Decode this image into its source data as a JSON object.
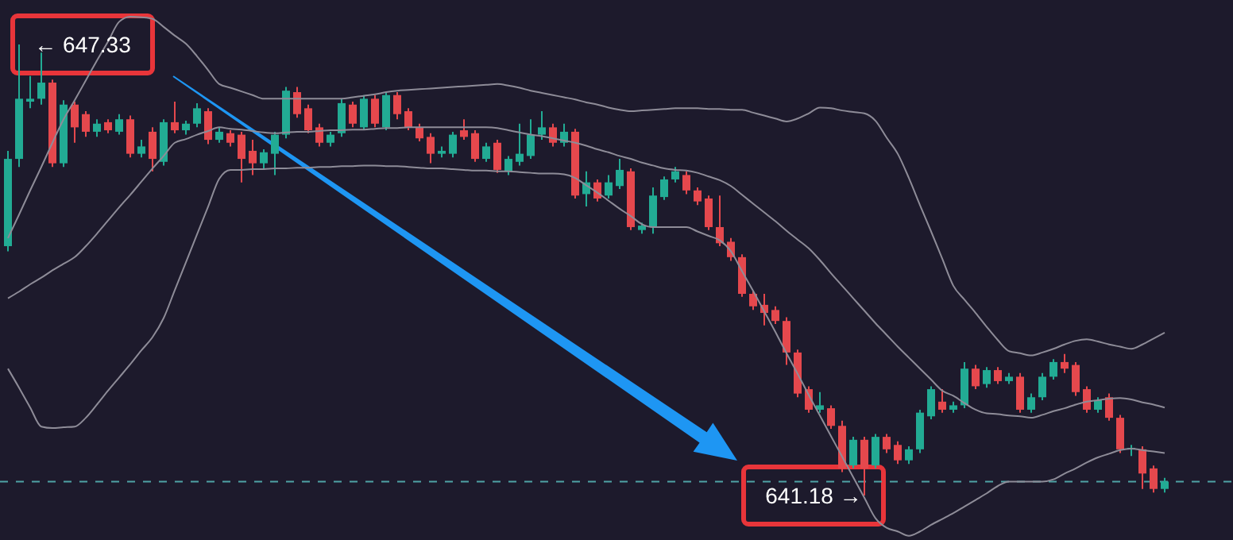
{
  "chart_data": {
    "type": "candlestick",
    "categories": [
      null,
      null,
      null,
      null,
      null,
      null,
      null,
      null,
      null,
      null,
      null,
      null,
      null,
      null,
      null,
      null,
      null,
      null,
      null,
      null,
      null,
      null,
      null,
      null,
      null,
      null,
      null,
      null,
      null,
      null,
      null,
      null,
      null,
      null,
      null,
      null,
      null,
      null,
      null,
      null,
      null,
      null,
      null,
      null,
      null,
      null,
      null,
      null,
      null,
      null,
      null,
      null,
      null,
      null,
      null,
      null,
      null,
      null,
      null,
      null,
      null,
      null,
      null,
      null,
      null,
      null,
      null,
      null,
      null,
      null,
      null,
      null,
      null,
      null,
      null,
      null,
      null,
      null,
      null,
      null,
      null,
      null,
      null,
      null,
      null,
      null,
      null,
      null,
      null,
      null,
      null,
      null,
      null,
      null,
      null,
      null,
      null,
      null,
      null,
      null,
      null,
      null,
      null,
      null,
      null
    ],
    "colors": [
      "#22ab94",
      "#22ab94",
      "#22ab94",
      "#22ab94",
      "#e5484d",
      "#22ab94",
      "#e5484d",
      "#e5484d",
      "#22ab94",
      "#e5484d",
      "#22ab94",
      "#e5484d",
      "#22ab94",
      "#e5484d",
      "#22ab94",
      "#e5484d",
      "#22ab94",
      "#22ab94",
      "#e5484d",
      "#22ab94",
      "#e5484d",
      "#e5484d",
      "#e5484d",
      "#22ab94",
      "#22ab94",
      "#22ab94",
      "#e5484d",
      "#e5484d",
      "#e5484d",
      "#22ab94",
      "#22ab94",
      "#e5484d",
      "#22ab94",
      "#e5484d",
      "#22ab94",
      "#e5484d",
      "#e5484d",
      "#e5484d",
      "#e5484d",
      "#22ab94",
      "#22ab94",
      "#e5484d",
      "#e5484d",
      "#22ab94",
      "#e5484d",
      "#22ab94",
      "#22ab94",
      "#22ab94",
      "#22ab94",
      "#e5484d",
      "#22ab94",
      "#e5484d",
      "#22ab94",
      "#e5484d",
      "#22ab94",
      "#22ab94",
      "#e5484d",
      "#22ab94",
      "#22ab94",
      "#22ab94",
      "#22ab94",
      "#e5484d",
      "#e5484d",
      "#e5484d",
      "#e5484d",
      "#e5484d",
      "#e5484d",
      "#e5484d",
      "#e5484d",
      "#e5484d",
      "#e5484d",
      "#e5484d",
      "#e5484d",
      "#22ab94",
      "#e5484d",
      "#e5484d",
      "#22ab94",
      "#e5484d",
      "#22ab94",
      "#e5484d",
      "#e5484d",
      "#22ab94",
      "#22ab94",
      "#22ab94",
      "#e5484d",
      "#22ab94",
      "#22ab94",
      "#e5484d",
      "#22ab94",
      "#e5484d",
      "#22ab94",
      "#e5484d",
      "#22ab94",
      "#22ab94",
      "#22ab94",
      "#e5484d",
      "#e5484d",
      "#e5484d",
      "#22ab94",
      "#e5484d",
      "#e5484d",
      "#22ab94",
      "#e5484d",
      "#e5484d",
      "#22ab94"
    ],
    "ohlc": [
      [
        644.58,
        645.88,
        644.51,
        645.77
      ],
      [
        645.77,
        647.33,
        645.66,
        646.59
      ],
      [
        646.55,
        646.9,
        646.46,
        646.59
      ],
      [
        646.59,
        647.22,
        646.51,
        646.81
      ],
      [
        646.81,
        646.85,
        645.66,
        645.71
      ],
      [
        645.71,
        646.57,
        645.66,
        646.51
      ],
      [
        646.51,
        646.55,
        645.99,
        646.2
      ],
      [
        646.38,
        646.42,
        646.07,
        646.14
      ],
      [
        646.14,
        646.31,
        646.07,
        646.25
      ],
      [
        646.27,
        646.31,
        646.12,
        646.16
      ],
      [
        646.14,
        646.38,
        646.1,
        646.31
      ],
      [
        646.31,
        646.36,
        645.79,
        645.84
      ],
      [
        645.84,
        646.03,
        645.79,
        645.94
      ],
      [
        646.14,
        646.2,
        645.6,
        645.77
      ],
      [
        645.73,
        646.31,
        645.68,
        646.27
      ],
      [
        646.27,
        646.55,
        646.12,
        646.16
      ],
      [
        646.16,
        646.29,
        646.1,
        646.25
      ],
      [
        646.25,
        646.53,
        646.2,
        646.46
      ],
      [
        646.42,
        646.46,
        645.97,
        646.03
      ],
      [
        646.03,
        646.2,
        645.99,
        646.14
      ],
      [
        646.12,
        646.16,
        645.94,
        645.99
      ],
      [
        646.1,
        646.14,
        645.45,
        645.77
      ],
      [
        645.88,
        646.03,
        645.55,
        645.71
      ],
      [
        645.71,
        645.9,
        645.64,
        645.86
      ],
      [
        645.84,
        646.14,
        645.55,
        646.1
      ],
      [
        646.1,
        646.75,
        646.05,
        646.7
      ],
      [
        646.68,
        646.75,
        646.33,
        646.38
      ],
      [
        646.46,
        646.51,
        646.12,
        646.16
      ],
      [
        646.2,
        646.25,
        645.94,
        645.99
      ],
      [
        645.99,
        646.14,
        645.94,
        646.1
      ],
      [
        646.12,
        646.59,
        646.07,
        646.53
      ],
      [
        646.51,
        646.55,
        646.2,
        646.25
      ],
      [
        646.2,
        646.64,
        646.16,
        646.59
      ],
      [
        646.59,
        646.64,
        646.2,
        646.25
      ],
      [
        646.2,
        646.68,
        646.16,
        646.64
      ],
      [
        646.64,
        646.68,
        646.31,
        646.38
      ],
      [
        646.42,
        646.46,
        646.16,
        646.2
      ],
      [
        646.2,
        646.25,
        646.01,
        646.05
      ],
      [
        646.07,
        646.12,
        645.71,
        645.84
      ],
      [
        645.84,
        645.94,
        645.79,
        645.88
      ],
      [
        645.84,
        646.14,
        645.79,
        646.1
      ],
      [
        646.16,
        646.31,
        646.03,
        646.07
      ],
      [
        646.12,
        646.16,
        645.73,
        645.77
      ],
      [
        645.77,
        645.99,
        645.73,
        645.94
      ],
      [
        645.99,
        646.03,
        645.58,
        645.62
      ],
      [
        645.6,
        645.81,
        645.55,
        645.77
      ],
      [
        645.73,
        646.25,
        645.68,
        645.84
      ],
      [
        645.81,
        646.31,
        645.77,
        646.1
      ],
      [
        646.1,
        646.42,
        646.03,
        646.2
      ],
      [
        646.2,
        646.25,
        645.94,
        645.99
      ],
      [
        645.99,
        646.25,
        645.94,
        646.14
      ],
      [
        646.14,
        646.18,
        645.23,
        645.27
      ],
      [
        645.29,
        645.6,
        645.12,
        645.45
      ],
      [
        645.45,
        645.49,
        645.19,
        645.23
      ],
      [
        645.27,
        645.55,
        645.23,
        645.45
      ],
      [
        645.4,
        645.77,
        645.36,
        645.62
      ],
      [
        645.6,
        645.64,
        644.8,
        644.84
      ],
      [
        644.8,
        644.9,
        644.75,
        644.86
      ],
      [
        644.84,
        645.38,
        644.75,
        645.27
      ],
      [
        645.25,
        645.53,
        645.21,
        645.49
      ],
      [
        645.49,
        645.66,
        645.45,
        645.6
      ],
      [
        645.55,
        645.6,
        645.29,
        645.34
      ],
      [
        645.34,
        645.38,
        645.14,
        645.19
      ],
      [
        645.23,
        645.27,
        644.8,
        644.84
      ],
      [
        644.84,
        645.27,
        644.58,
        644.62
      ],
      [
        644.64,
        644.69,
        644.38,
        644.43
      ],
      [
        644.43,
        644.47,
        643.89,
        643.93
      ],
      [
        643.93,
        643.97,
        643.71,
        643.76
      ],
      [
        643.78,
        643.93,
        643.5,
        643.67
      ],
      [
        643.71,
        643.76,
        643.52,
        643.56
      ],
      [
        643.56,
        643.61,
        642.96,
        643.13
      ],
      [
        643.13,
        643.17,
        642.52,
        642.57
      ],
      [
        642.63,
        642.67,
        642.31,
        642.35
      ],
      [
        642.35,
        642.59,
        642.31,
        642.41
      ],
      [
        642.37,
        642.41,
        642.09,
        642.13
      ],
      [
        642.13,
        642.2,
        641.5,
        641.55
      ],
      [
        641.59,
        641.98,
        641.55,
        641.94
      ],
      [
        641.94,
        641.98,
        641.18,
        641.55
      ],
      [
        641.59,
        642.02,
        641.55,
        641.98
      ],
      [
        641.98,
        642.02,
        641.76,
        641.81
      ],
      [
        641.87,
        641.92,
        641.61,
        641.66
      ],
      [
        641.66,
        641.85,
        641.61,
        641.81
      ],
      [
        641.81,
        642.35,
        641.76,
        642.31
      ],
      [
        642.26,
        642.67,
        642.22,
        642.63
      ],
      [
        642.46,
        642.63,
        642.31,
        642.35
      ],
      [
        642.35,
        642.46,
        642.31,
        642.41
      ],
      [
        642.41,
        643.0,
        642.37,
        642.91
      ],
      [
        642.91,
        642.96,
        642.63,
        642.67
      ],
      [
        642.7,
        642.93,
        642.65,
        642.89
      ],
      [
        642.89,
        642.93,
        642.7,
        642.74
      ],
      [
        642.74,
        642.85,
        642.7,
        642.8
      ],
      [
        642.8,
        642.85,
        642.31,
        642.35
      ],
      [
        642.35,
        642.57,
        642.31,
        642.52
      ],
      [
        642.52,
        642.85,
        642.48,
        642.8
      ],
      [
        642.8,
        643.04,
        642.76,
        643.0
      ],
      [
        643.0,
        643.11,
        642.85,
        642.91
      ],
      [
        642.96,
        643.0,
        642.54,
        642.59
      ],
      [
        642.63,
        642.67,
        642.31,
        642.35
      ],
      [
        642.35,
        642.52,
        642.31,
        642.48
      ],
      [
        642.52,
        642.57,
        642.2,
        642.24
      ],
      [
        642.24,
        642.28,
        641.76,
        641.81
      ],
      [
        641.81,
        641.87,
        641.72,
        641.83
      ],
      [
        641.81,
        641.85,
        641.27,
        641.48
      ],
      [
        641.55,
        641.59,
        641.22,
        641.27
      ],
      [
        641.27,
        641.42,
        641.22,
        641.37
      ]
    ],
    "series": [
      {
        "type": "line",
        "color": "#8e8c98",
        "values": [
          644.69,
          645.01,
          645.34,
          645.66,
          645.99,
          646.31,
          646.57,
          646.84,
          647.11,
          647.37,
          647.64,
          647.71,
          647.7,
          647.68,
          647.57,
          647.45,
          647.34,
          647.17,
          646.98,
          646.79,
          646.74,
          646.69,
          646.64,
          646.59,
          646.59,
          646.59,
          646.59,
          646.59,
          646.59,
          646.59,
          646.59,
          646.61,
          646.63,
          646.65,
          646.68,
          646.7,
          646.71,
          646.72,
          646.73,
          646.74,
          646.75,
          646.76,
          646.77,
          646.78,
          646.79,
          646.77,
          646.74,
          646.7,
          646.67,
          646.64,
          646.61,
          646.58,
          646.54,
          646.51,
          646.47,
          646.44,
          646.42,
          646.43,
          646.44,
          646.45,
          646.46,
          646.46,
          646.46,
          646.45,
          646.45,
          646.44,
          646.44,
          646.4,
          646.36,
          646.32,
          646.28,
          646.32,
          646.39,
          646.47,
          646.46,
          646.43,
          646.41,
          646.39,
          646.29,
          646.06,
          645.84,
          645.51,
          645.14,
          644.78,
          644.41,
          644.04,
          643.85,
          643.67,
          643.48,
          643.3,
          643.15,
          643.12,
          643.09,
          643.13,
          643.18,
          643.24,
          643.29,
          643.31,
          643.28,
          643.24,
          643.21,
          643.18,
          643.24,
          643.32,
          643.4
        ]
      },
      {
        "type": "line",
        "color": "#8e8c98",
        "values": [
          643.87,
          643.96,
          644.06,
          644.15,
          644.25,
          644.34,
          644.43,
          644.58,
          644.75,
          644.93,
          645.11,
          645.28,
          645.46,
          645.64,
          645.81,
          645.99,
          646.04,
          646.1,
          646.15,
          646.2,
          646.18,
          646.17,
          646.15,
          646.13,
          646.12,
          646.13,
          646.14,
          646.14,
          646.15,
          646.16,
          646.16,
          646.17,
          646.17,
          646.18,
          646.19,
          646.19,
          646.2,
          646.2,
          646.2,
          646.2,
          646.2,
          646.2,
          646.2,
          646.2,
          646.19,
          646.16,
          646.13,
          646.1,
          646.08,
          646.05,
          646.02,
          645.99,
          645.95,
          645.9,
          645.86,
          645.81,
          645.77,
          645.72,
          645.68,
          645.64,
          645.62,
          645.61,
          645.58,
          645.53,
          645.48,
          645.4,
          645.28,
          645.16,
          645.04,
          644.92,
          644.79,
          644.67,
          644.55,
          644.39,
          644.21,
          644.04,
          643.87,
          643.7,
          643.53,
          643.37,
          643.21,
          643.06,
          642.91,
          642.76,
          642.61,
          642.54,
          642.44,
          642.35,
          642.3,
          642.29,
          642.27,
          642.26,
          642.24,
          642.28,
          642.33,
          642.37,
          642.42,
          642.46,
          642.48,
          642.5,
          642.51,
          642.49,
          642.45,
          642.42,
          642.38
        ]
      },
      {
        "type": "line",
        "color": "#8e8c98",
        "values": [
          642.91,
          642.65,
          642.38,
          642.12,
          642.1,
          642.11,
          642.12,
          642.24,
          642.42,
          642.61,
          642.79,
          642.97,
          643.16,
          643.34,
          643.6,
          643.98,
          644.36,
          644.74,
          645.12,
          645.5,
          645.62,
          645.62,
          645.63,
          645.63,
          645.64,
          645.64,
          645.65,
          645.65,
          645.66,
          645.66,
          645.67,
          645.67,
          645.68,
          645.68,
          645.67,
          645.67,
          645.66,
          645.65,
          645.64,
          645.64,
          645.63,
          645.62,
          645.61,
          645.61,
          645.6,
          645.6,
          645.59,
          645.58,
          645.57,
          645.57,
          645.56,
          645.51,
          645.41,
          645.31,
          645.2,
          645.09,
          644.99,
          644.88,
          644.84,
          644.84,
          644.84,
          644.84,
          644.78,
          644.72,
          644.66,
          644.51,
          644.24,
          643.97,
          643.69,
          643.41,
          643.12,
          642.84,
          642.55,
          642.27,
          641.99,
          641.71,
          641.43,
          641.15,
          640.87,
          640.74,
          640.69,
          640.63,
          640.69,
          640.78,
          640.86,
          640.94,
          641.03,
          641.12,
          641.21,
          641.31,
          641.37,
          641.37,
          641.37,
          641.37,
          641.4,
          641.48,
          641.55,
          641.63,
          641.7,
          641.75,
          641.8,
          641.82,
          641.8,
          641.78,
          641.76
        ]
      }
    ],
    "ref_lines": [
      {
        "axis": "y",
        "value": 641.37,
        "color": "#4fa3a5",
        "line_style": "dashed"
      }
    ],
    "annotations": [
      "← 647.33",
      "641.18 →"
    ]
  }
}
